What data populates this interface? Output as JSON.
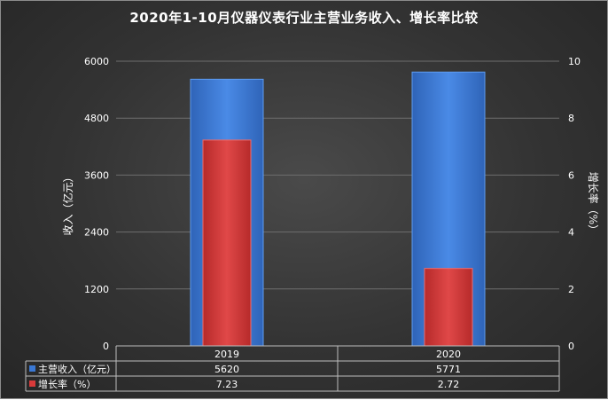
{
  "chart_data": {
    "type": "bar",
    "title": "2020年1-10月仪器仪表行业主营业务收入、增长率比较",
    "categories": [
      "2019",
      "2020"
    ],
    "series": [
      {
        "name": "主营收入（亿元）",
        "axis": "left",
        "values": [
          5620,
          5771
        ],
        "color": "#3a78d4"
      },
      {
        "name": "增长率（%）",
        "axis": "right",
        "values": [
          7.23,
          2.72
        ],
        "color": "#d93a3a"
      }
    ],
    "ylabel": "收入（亿元）",
    "y2label": "增长率（%）",
    "ylim": [
      0,
      6000
    ],
    "y2lim": [
      0,
      10
    ],
    "yticks": [
      0,
      1200,
      2400,
      3600,
      4800,
      6000
    ],
    "y2ticks": [
      0,
      2,
      4,
      6,
      8,
      10
    ],
    "grid": true,
    "legend": "data table"
  }
}
